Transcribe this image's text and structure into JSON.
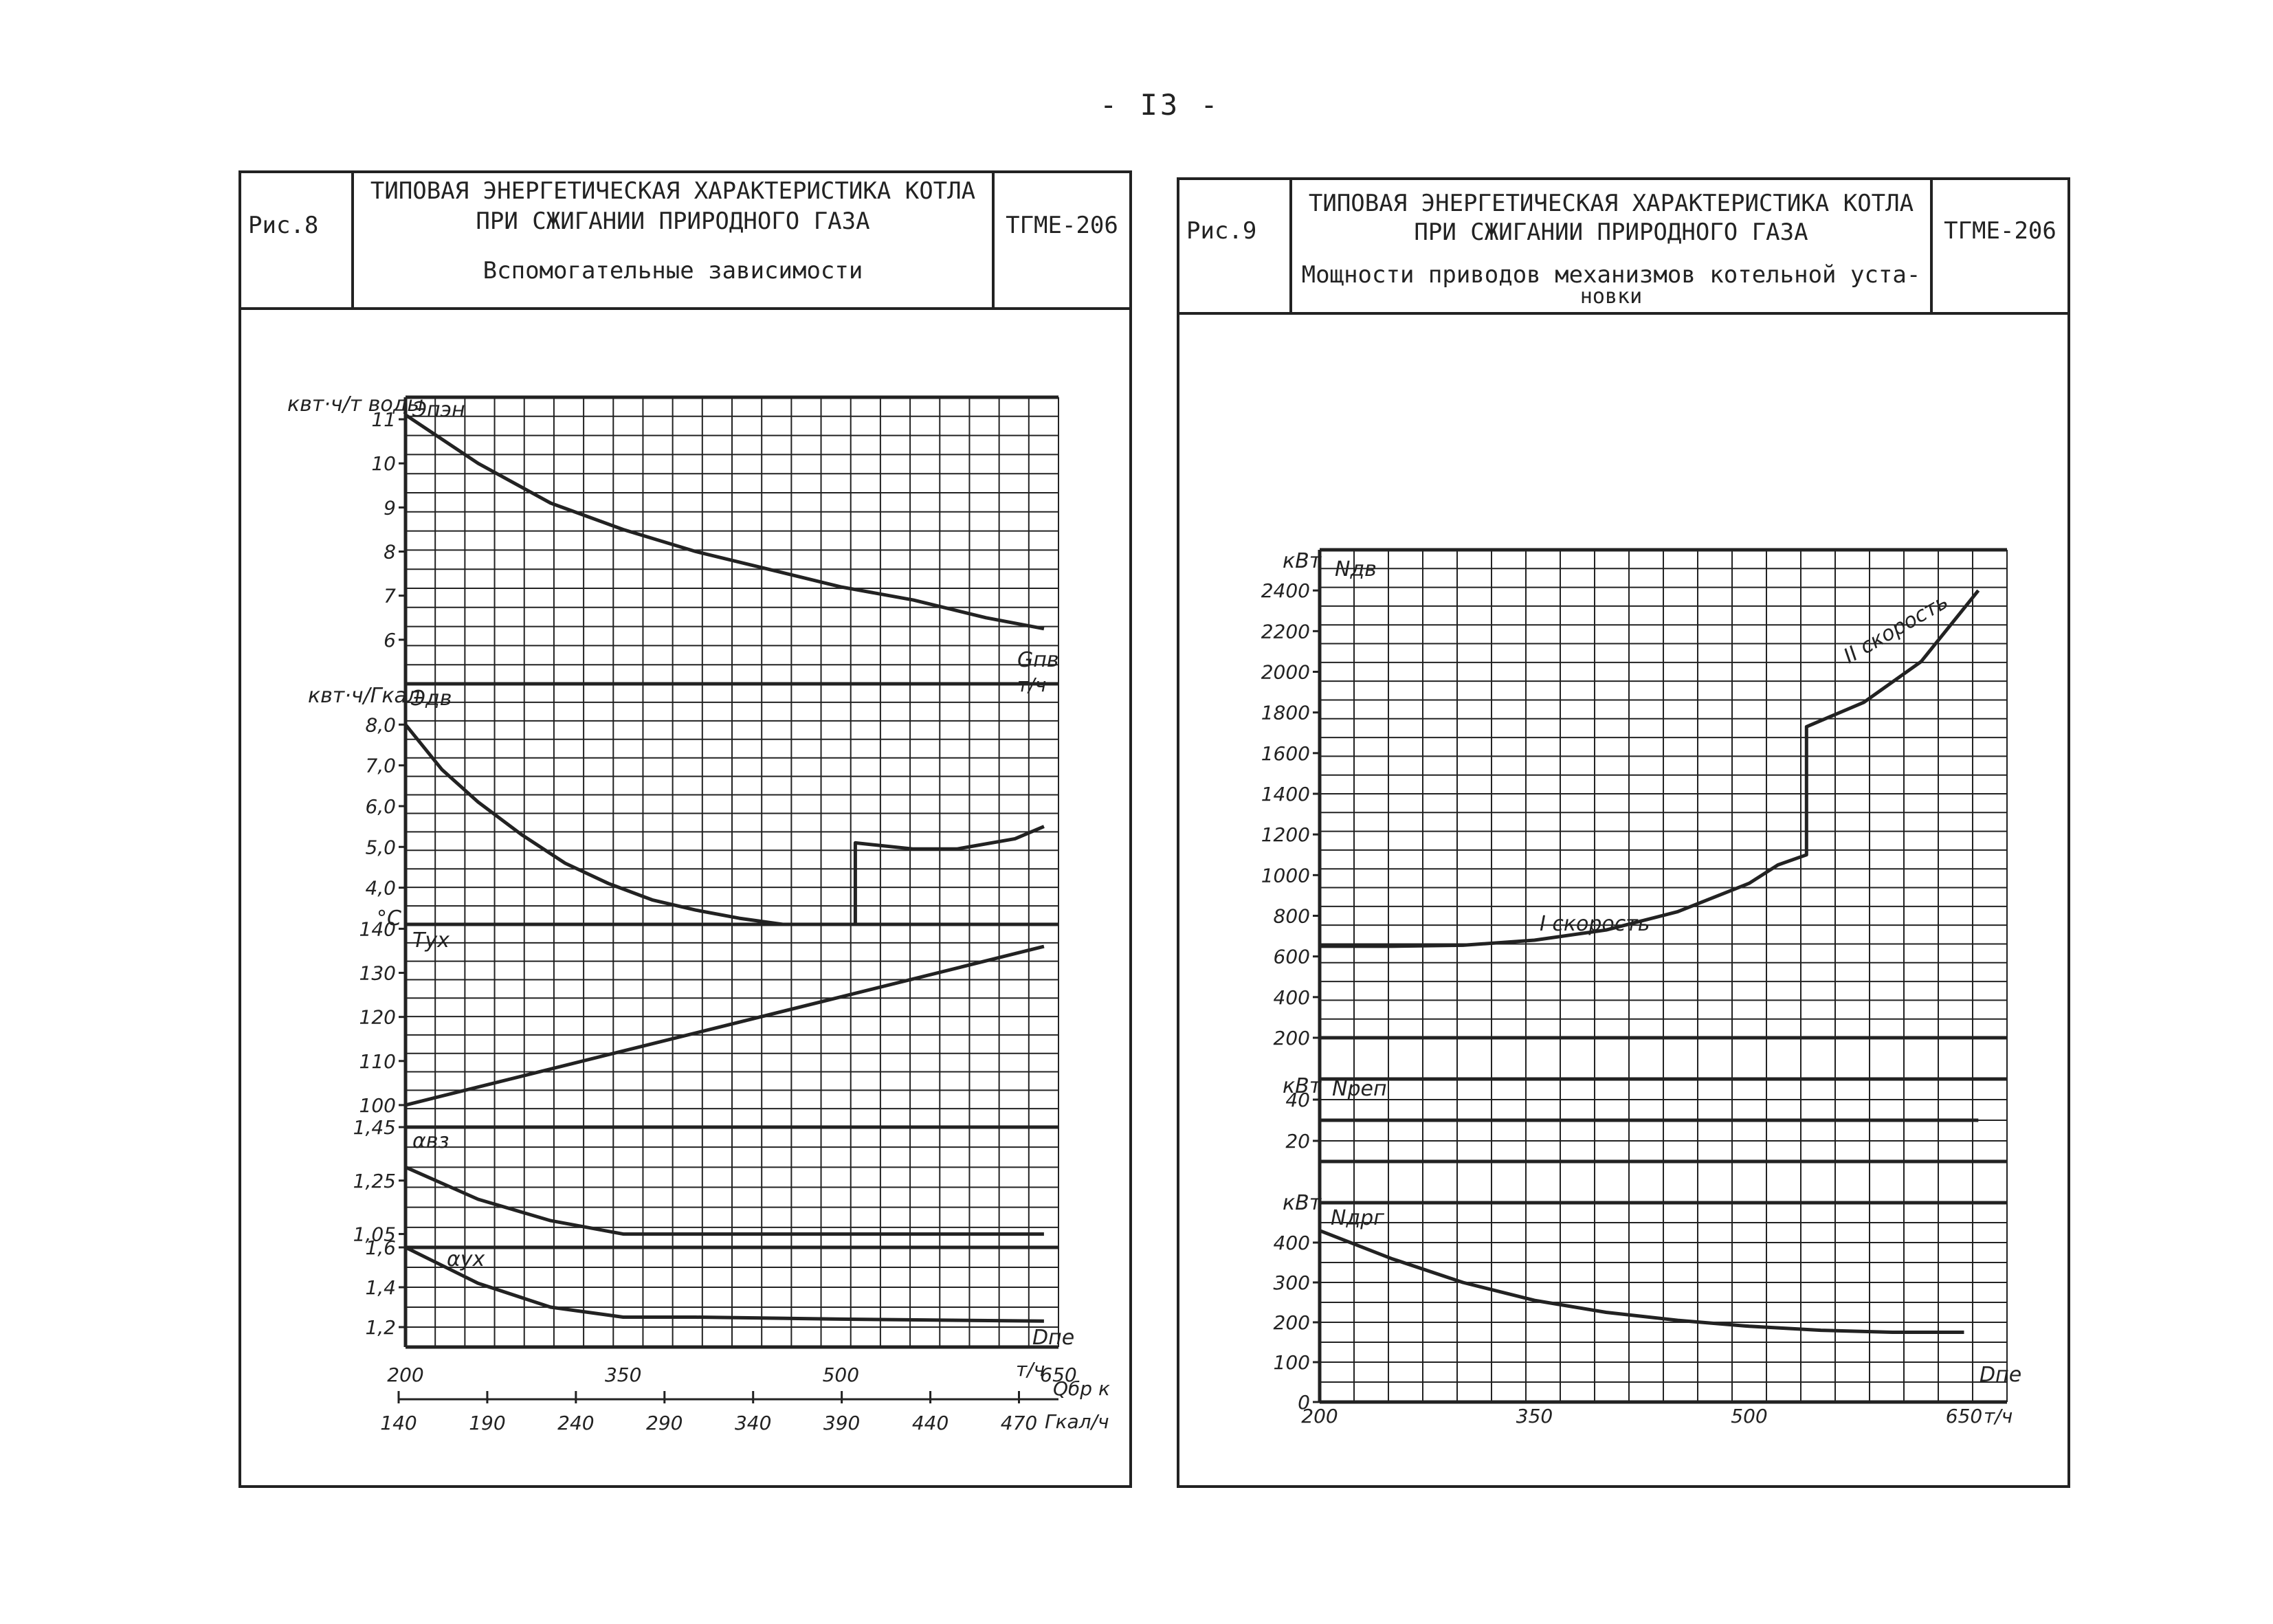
{
  "page_number": "- I3 -",
  "colors": {
    "ink": "#222222",
    "paper": "#ffffff"
  },
  "panels": [
    {
      "fig": "Рис.8",
      "title1": "ТИПОВАЯ ЭНЕРГЕТИЧЕСКАЯ ХАРАКТЕРИСТИКА КОТЛА",
      "title2": "ПРИ СЖИГАНИИ ПРИРОДНОГО ГАЗА",
      "subtitle": "Вспомогательные зависимости",
      "model": "ТГМЕ-206"
    },
    {
      "fig": "Рис.9",
      "title1": "ТИПОВАЯ ЭНЕРГЕТИЧЕСКАЯ ХАРАКТЕРИСТИКА КОТЛА",
      "title2": "ПРИ СЖИГАНИИ ПРИРОДНОГО ГАЗА",
      "subtitle": "Мощности приводов механизмов котельной уста-",
      "subtitle2": "новки",
      "model": "ТГМЕ-206"
    }
  ],
  "chart_data": [
    {
      "type": "line",
      "x_ticks": [
        "200",
        "350",
        "500",
        "650"
      ],
      "x_unit": "т/ч",
      "x_label": "Dпе",
      "x2_ticks": [
        "140",
        "190",
        "240",
        "290",
        "340",
        "390",
        "440",
        "470"
      ],
      "x2_unit": "Гкал/ч",
      "x2_label": "Qбр к",
      "xlim": [
        200,
        650
      ],
      "subplots": [
        {
          "name": "Эпэн",
          "ylabel": "квт·ч/т воды",
          "yticks": [
            "11",
            "10",
            "9",
            "8",
            "7",
            "6"
          ],
          "ylim": [
            5.0,
            11.5
          ],
          "extra_label": "Gпв",
          "extra_unit": "т/ч",
          "series": [
            {
              "x": [
                200,
                250,
                300,
                350,
                400,
                450,
                500,
                550,
                600,
                640
              ],
              "y": [
                11.1,
                10.0,
                9.1,
                8.5,
                8.0,
                7.6,
                7.2,
                6.9,
                6.5,
                6.25
              ]
            }
          ]
        },
        {
          "name": "Эдв",
          "ylabel": "квт·ч/Гкал",
          "yticks": [
            "8,0",
            "7,0",
            "6,0",
            "5,0",
            "4,0"
          ],
          "ylim": [
            3.1,
            9.0
          ],
          "series": [
            {
              "x": [
                200,
                225,
                250,
                280,
                310,
                340,
                370,
                400,
                430,
                460,
                510,
                510,
                550,
                580,
                620,
                640
              ],
              "y": [
                8.0,
                6.9,
                6.1,
                5.3,
                4.6,
                4.1,
                3.7,
                3.45,
                3.25,
                3.1,
                3.1,
                5.1,
                4.95,
                4.95,
                5.2,
                5.5
              ]
            }
          ]
        },
        {
          "name": "Tух",
          "ylabel": "°C",
          "yticks": [
            "140",
            "130",
            "120",
            "110",
            "100"
          ],
          "ylim": [
            95,
            141
          ],
          "series": [
            {
              "x": [
                200,
                640
              ],
              "y": [
                100,
                136
              ]
            }
          ]
        },
        {
          "name": "αвз",
          "yticks": [
            "1,45",
            "1,25",
            "1,05"
          ],
          "ylim": [
            1.0,
            1.45
          ],
          "series": [
            {
              "x": [
                200,
                250,
                300,
                350,
                400,
                500,
                640
              ],
              "y": [
                1.3,
                1.18,
                1.1,
                1.05,
                1.05,
                1.05,
                1.05
              ]
            }
          ]
        },
        {
          "name": "αух",
          "yticks": [
            "1,6",
            "1,4",
            "1,2"
          ],
          "ylim": [
            1.1,
            1.6
          ],
          "series": [
            {
              "x": [
                200,
                250,
                300,
                350,
                400,
                500,
                640
              ],
              "y": [
                1.6,
                1.42,
                1.3,
                1.25,
                1.25,
                1.24,
                1.23
              ]
            }
          ]
        }
      ]
    },
    {
      "type": "line",
      "x_ticks": [
        "200",
        "350",
        "500",
        "650"
      ],
      "x_unit": "т/ч",
      "x_label": "Dпе",
      "xlim": [
        200,
        680
      ],
      "subplots": [
        {
          "name": "Nдв",
          "unit": "кВт",
          "yticks": [
            "2400",
            "2200",
            "2000",
            "1800",
            "1600",
            "1400",
            "1200",
            "1000",
            "800",
            "600",
            "400",
            "200"
          ],
          "ylim": [
            200,
            2600
          ],
          "annotations": [
            "I скорость",
            "II скорость"
          ],
          "series": [
            {
              "x": [
                200,
                250,
                300,
                350,
                400,
                450,
                500,
                520,
                540,
                540,
                580,
                620,
                660
              ],
              "y": [
                650,
                650,
                655,
                680,
                730,
                820,
                960,
                1050,
                1100,
                1730,
                1850,
                2050,
                2400
              ]
            }
          ]
        },
        {
          "name": "Nреп",
          "unit": "кВт",
          "yticks": [
            "40",
            "20"
          ],
          "ylim": [
            10,
            50
          ],
          "series": [
            {
              "x": [
                200,
                660
              ],
              "y": [
                30,
                30
              ]
            }
          ]
        },
        {
          "name": "Nдрг",
          "unit": "кВт",
          "yticks": [
            "400",
            "300",
            "200",
            "100",
            "0"
          ],
          "ylim": [
            0,
            500
          ],
          "series": [
            {
              "x": [
                200,
                250,
                300,
                350,
                400,
                450,
                500,
                550,
                600,
                650
              ],
              "y": [
                430,
                360,
                300,
                255,
                225,
                205,
                190,
                180,
                175,
                175
              ]
            }
          ]
        }
      ]
    }
  ]
}
